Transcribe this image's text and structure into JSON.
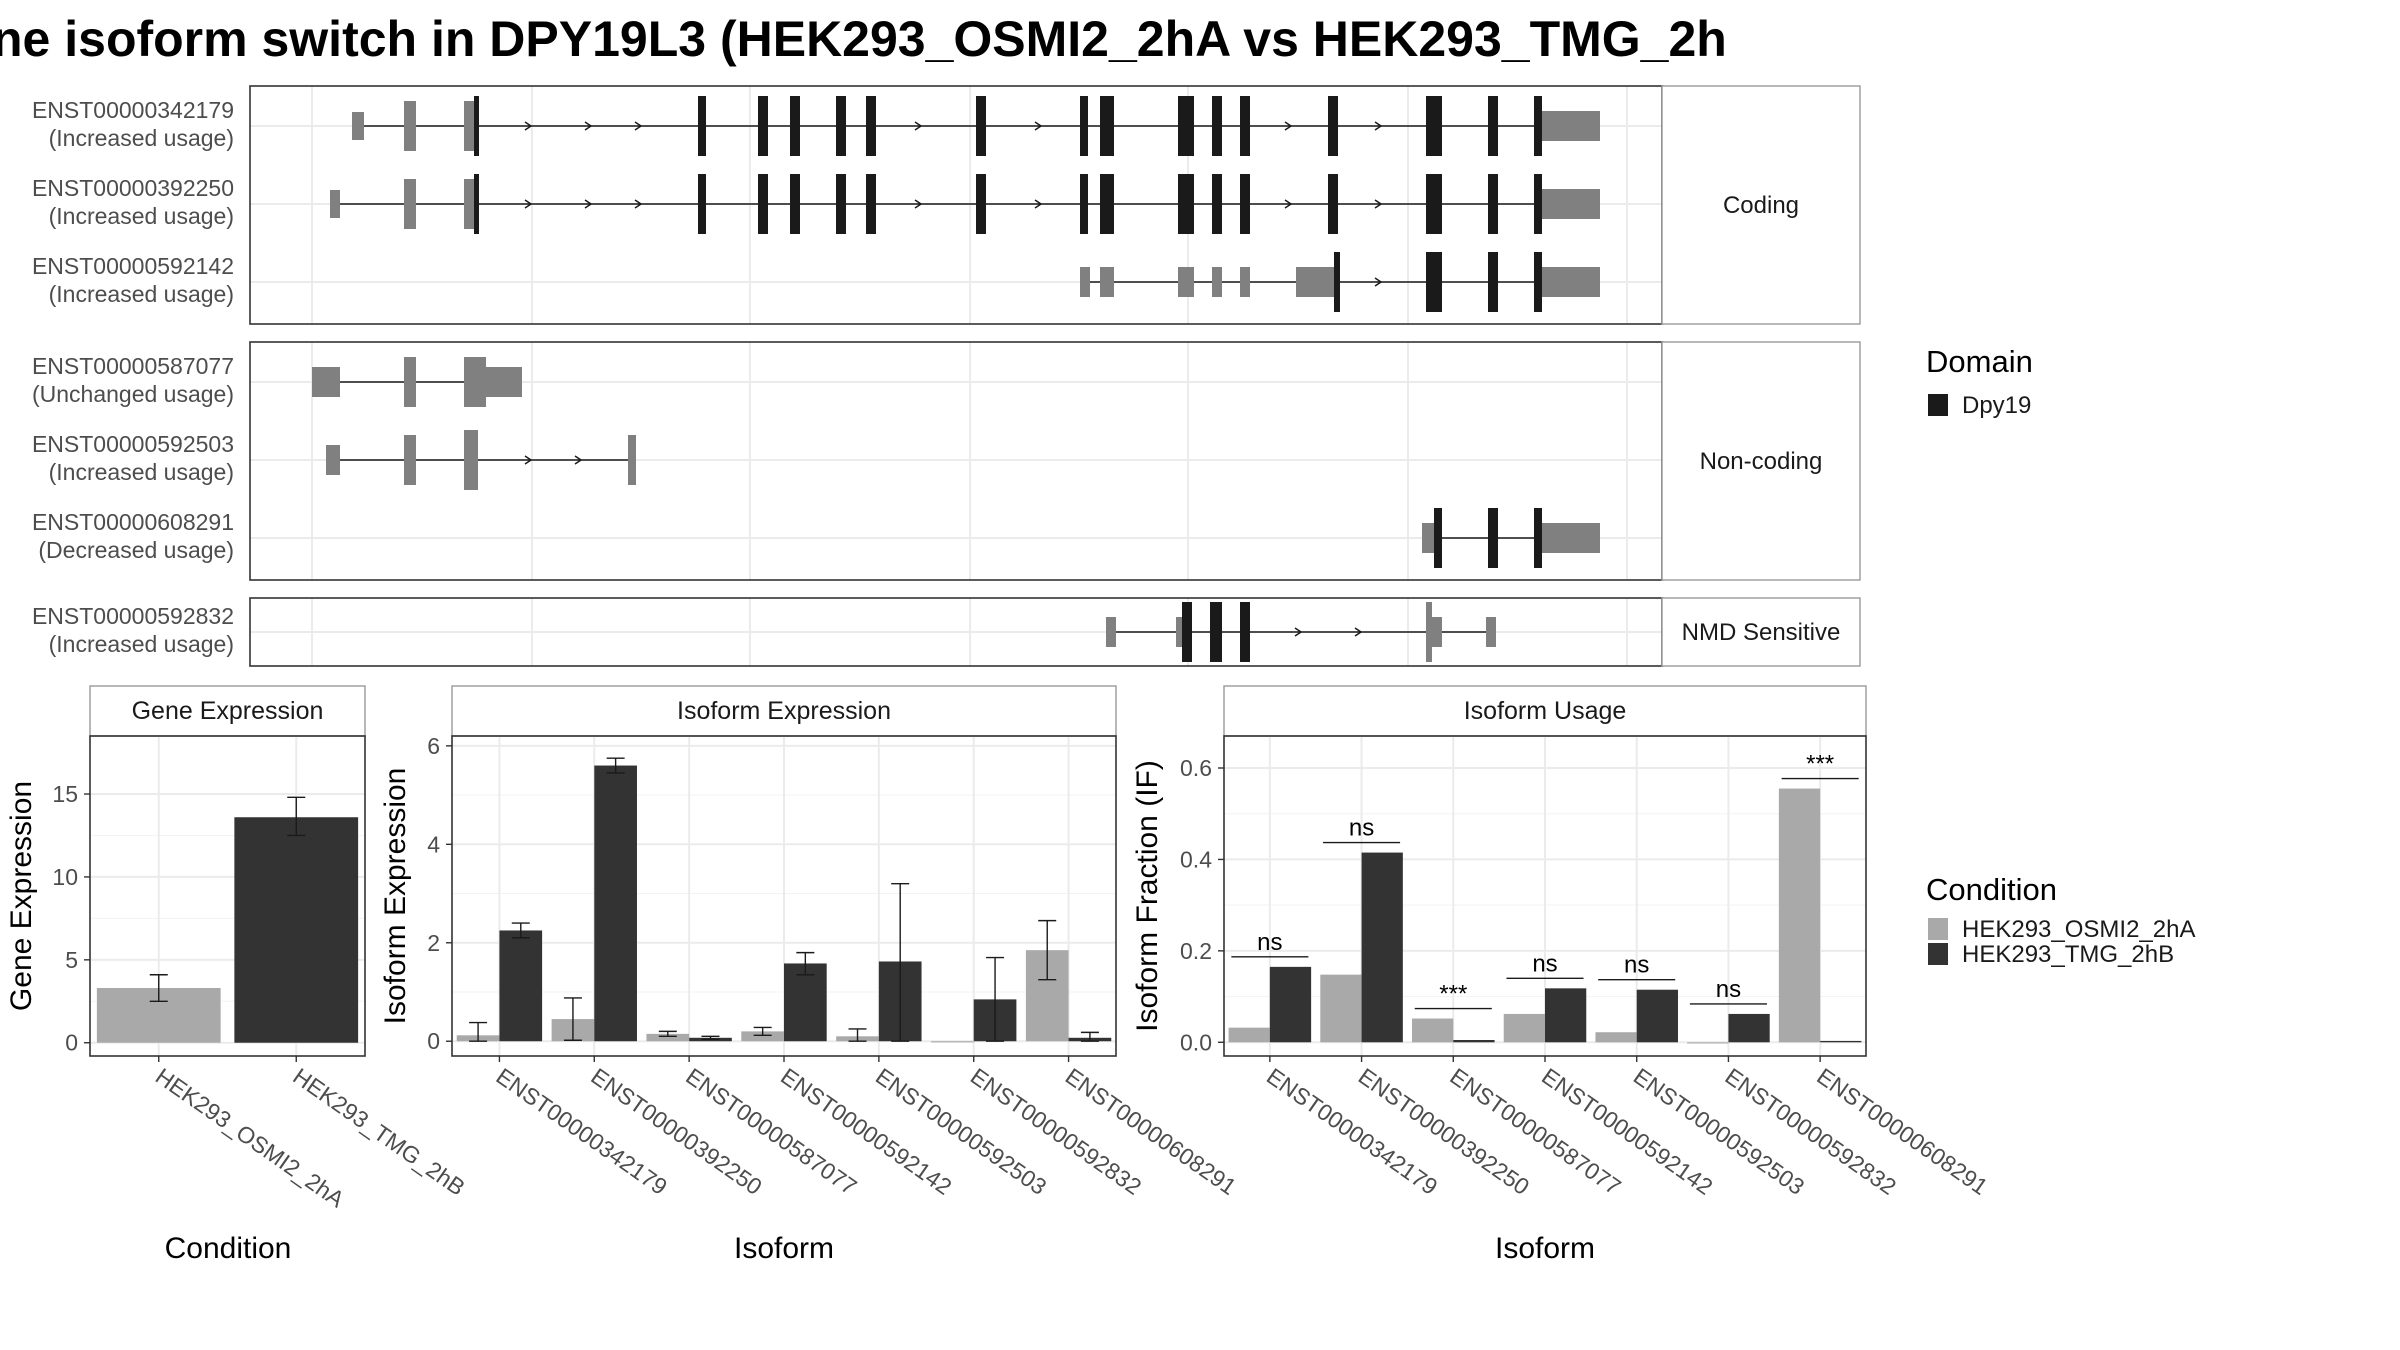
{
  "title": "ne isoform switch in DPY19L3 (HEK293_OSMI2_2hA vs HEK293_TMG_2h",
  "colors": {
    "cond_a": "#a9a9a9",
    "cond_b": "#333333",
    "domain": "#1a1a1a",
    "utr": "#808080",
    "strip_bg": "#ffffff",
    "grid": "#ebebeb",
    "border": "#333333"
  },
  "structure": {
    "groups": [
      {
        "label": "Coding",
        "transcripts": [
          {
            "id": "ENST00000342179",
            "status": "(Increased usage)"
          },
          {
            "id": "ENST00000392250",
            "status": "(Increased usage)"
          },
          {
            "id": "ENST00000592142",
            "status": "(Increased usage)"
          }
        ]
      },
      {
        "label": "Non-coding",
        "transcripts": [
          {
            "id": "ENST00000587077",
            "status": "(Unchanged usage)"
          },
          {
            "id": "ENST00000592503",
            "status": "(Increased usage)"
          },
          {
            "id": "ENST00000608291",
            "status": "(Decreased usage)"
          }
        ]
      },
      {
        "label": "NMD Sensitive",
        "transcripts": [
          {
            "id": "ENST00000592832",
            "status": "(Increased usage)"
          }
        ]
      }
    ],
    "legend_title": "Domain",
    "legend_items": [
      {
        "label": "Dpy19"
      }
    ]
  },
  "condition_legend": {
    "title": "Condition",
    "items": [
      "HEK293_OSMI2_2hA",
      "HEK293_TMG_2hB"
    ]
  },
  "chart_data": [
    {
      "type": "bar",
      "title": "Gene Expression",
      "xlabel": "Condition",
      "ylabel": "Gene Expression",
      "categories": [
        "HEK293_OSMI2_2hA",
        "HEK293_TMG_2hB"
      ],
      "values": [
        3.3,
        13.6
      ],
      "errors": [
        [
          2.5,
          4.1
        ],
        [
          12.5,
          14.8
        ]
      ],
      "yticks": [
        0,
        5,
        10,
        15
      ],
      "ylim": [
        -0.8,
        18.5
      ]
    },
    {
      "type": "bar",
      "title": "Isoform Expression",
      "xlabel": "Isoform",
      "ylabel": "Isoform Expression",
      "categories": [
        "ENST00000342179",
        "ENST00000392250",
        "ENST00000587077",
        "ENST00000592142",
        "ENST00000592503",
        "ENST00000592832",
        "ENST00000608291"
      ],
      "series": [
        {
          "name": "HEK293_OSMI2_2hA",
          "values": [
            0.12,
            0.45,
            0.15,
            0.2,
            0.1,
            0.0,
            1.85
          ],
          "errors": [
            [
              0.0,
              0.38
            ],
            [
              0.02,
              0.88
            ],
            [
              0.1,
              0.2
            ],
            [
              0.12,
              0.28
            ],
            [
              0.0,
              0.25
            ],
            [
              0.0,
              0.0
            ],
            [
              1.25,
              2.45
            ]
          ]
        },
        {
          "name": "HEK293_TMG_2hB",
          "values": [
            2.25,
            5.6,
            0.07,
            1.58,
            1.62,
            0.85,
            0.07
          ],
          "errors": [
            [
              2.1,
              2.4
            ],
            [
              5.45,
              5.75
            ],
            [
              0.04,
              0.1
            ],
            [
              1.35,
              1.8
            ],
            [
              0.0,
              3.2
            ],
            [
              0.0,
              1.7
            ],
            [
              0.0,
              0.18
            ]
          ]
        }
      ],
      "yticks": [
        0,
        2,
        4,
        6
      ],
      "ylim": [
        -0.3,
        6.2
      ]
    },
    {
      "type": "bar",
      "title": "Isoform Usage",
      "xlabel": "Isoform",
      "ylabel": "Isoform Fraction (IF)",
      "categories": [
        "ENST00000342179",
        "ENST00000392250",
        "ENST00000587077",
        "ENST00000592142",
        "ENST00000592503",
        "ENST00000592832",
        "ENST00000608291"
      ],
      "series": [
        {
          "name": "HEK293_OSMI2_2hA",
          "values": [
            0.032,
            0.148,
            0.052,
            0.062,
            0.022,
            0.0,
            0.555
          ]
        },
        {
          "name": "HEK293_TMG_2hB",
          "values": [
            0.165,
            0.415,
            0.005,
            0.118,
            0.115,
            0.062,
            0.003
          ]
        }
      ],
      "significance": [
        "ns",
        "ns",
        "***",
        "ns",
        "ns",
        "ns",
        "***"
      ],
      "yticks": [
        0.0,
        0.2,
        0.4,
        0.6
      ],
      "ylim": [
        -0.03,
        0.67
      ]
    }
  ]
}
